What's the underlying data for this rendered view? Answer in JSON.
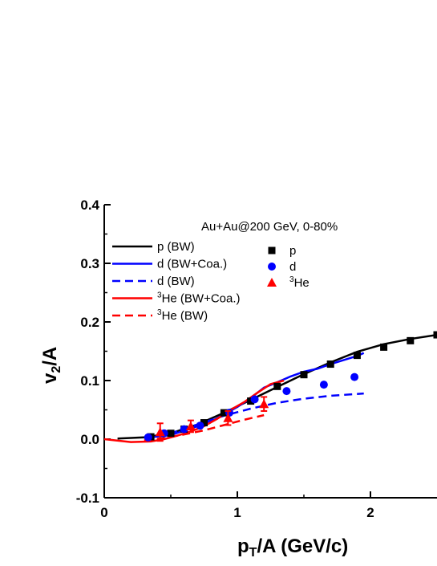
{
  "chart_data": {
    "type": "line",
    "annotation": "Au+Au@200 GeV, 0-80%",
    "xlabel": {
      "base": "p",
      "sub": "T",
      "rest": "/A (GeV/c)"
    },
    "ylabel": {
      "base": "v",
      "sub": "2",
      "rest": "/A"
    },
    "xlim": [
      0,
      2.5
    ],
    "ylim": [
      -0.1,
      0.4
    ],
    "x_ticks": [
      0,
      1,
      2
    ],
    "x_tick_labels": [
      "0",
      "1",
      "2"
    ],
    "y_ticks": [
      -0.1,
      0.0,
      0.1,
      0.2,
      0.3,
      0.4
    ],
    "y_tick_labels": [
      "-0.1",
      "0.0",
      "0.1",
      "0.2",
      "0.3",
      "0.4"
    ],
    "grid": false,
    "lines": [
      {
        "name": "p (BW)",
        "color": "#000000",
        "dash": "solid",
        "x": [
          0.1,
          0.3,
          0.5,
          0.7,
          0.9,
          1.1,
          1.3,
          1.5,
          1.7,
          1.9,
          2.1,
          2.3,
          2.5
        ],
        "y": [
          0.001,
          0.003,
          0.01,
          0.025,
          0.045,
          0.067,
          0.089,
          0.111,
          0.131,
          0.149,
          0.162,
          0.171,
          0.178
        ]
      },
      {
        "name": "d (BW+Coa.)",
        "color": "#0000ff",
        "dash": "solid",
        "x": [
          0.3,
          0.5,
          0.7,
          0.8,
          0.9,
          1.0,
          1.1,
          1.2,
          1.3,
          1.4,
          1.5,
          1.6,
          1.7,
          1.8,
          1.9,
          1.95
        ],
        "y": [
          0.002,
          0.007,
          0.022,
          0.03,
          0.042,
          0.055,
          0.07,
          0.088,
          0.097,
          0.107,
          0.115,
          0.12,
          0.128,
          0.135,
          0.142,
          0.147
        ]
      },
      {
        "name": "d (BW)",
        "color": "#0000ff",
        "dash": "dash",
        "x": [
          0.3,
          0.5,
          0.7,
          0.9,
          1.1,
          1.3,
          1.5,
          1.7,
          1.95
        ],
        "y": [
          0.002,
          0.01,
          0.025,
          0.04,
          0.052,
          0.062,
          0.069,
          0.074,
          0.078
        ]
      },
      {
        "name": "He (BW+Coa.)",
        "sup": "3",
        "color": "#ff0000",
        "dash": "solid",
        "x": [
          0.0,
          0.2,
          0.35,
          0.45,
          0.55,
          0.65,
          0.75,
          0.85,
          0.95,
          1.05,
          1.15,
          1.25,
          1.35
        ],
        "y": [
          0.0,
          -0.005,
          -0.004,
          0.0,
          0.006,
          0.013,
          0.022,
          0.035,
          0.05,
          0.063,
          0.079,
          0.094,
          0.1
        ]
      },
      {
        "name": "He (BW)",
        "sup": "3",
        "color": "#ff0000",
        "dash": "dash",
        "x": [
          0.3,
          0.45,
          0.6,
          0.75,
          0.9,
          1.05,
          1.2
        ],
        "y": [
          -0.002,
          0.002,
          0.008,
          0.015,
          0.024,
          0.033,
          0.041
        ]
      }
    ],
    "points": [
      {
        "name": "p",
        "marker": "square",
        "color": "#000000",
        "x": [
          0.35,
          0.5,
          0.6,
          0.75,
          0.9,
          1.1,
          1.3,
          1.5,
          1.7,
          1.9,
          2.1,
          2.3,
          2.5
        ],
        "y": [
          0.004,
          0.01,
          0.017,
          0.028,
          0.045,
          0.065,
          0.09,
          0.11,
          0.128,
          0.143,
          0.157,
          0.168,
          0.178
        ],
        "err": [
          0,
          0,
          0,
          0,
          0,
          0,
          0,
          0,
          0,
          0,
          0,
          0,
          0
        ]
      },
      {
        "name": "d",
        "marker": "circle",
        "color": "#0000ff",
        "x": [
          0.33,
          0.45,
          0.6,
          0.72,
          0.94,
          1.13,
          1.37,
          1.65,
          1.88
        ],
        "y": [
          0.003,
          0.01,
          0.017,
          0.023,
          0.045,
          0.068,
          0.082,
          0.093,
          0.106
        ],
        "err": [
          0,
          0,
          0,
          0,
          0,
          0,
          0,
          0,
          0
        ]
      },
      {
        "name": "He",
        "sup": "3",
        "marker": "triangle",
        "color": "#ff0000",
        "x": [
          0.42,
          0.65,
          0.93,
          1.2
        ],
        "y": [
          0.012,
          0.022,
          0.036,
          0.06
        ],
        "err": [
          0.015,
          0.01,
          0.012,
          0.012
        ]
      }
    ]
  }
}
